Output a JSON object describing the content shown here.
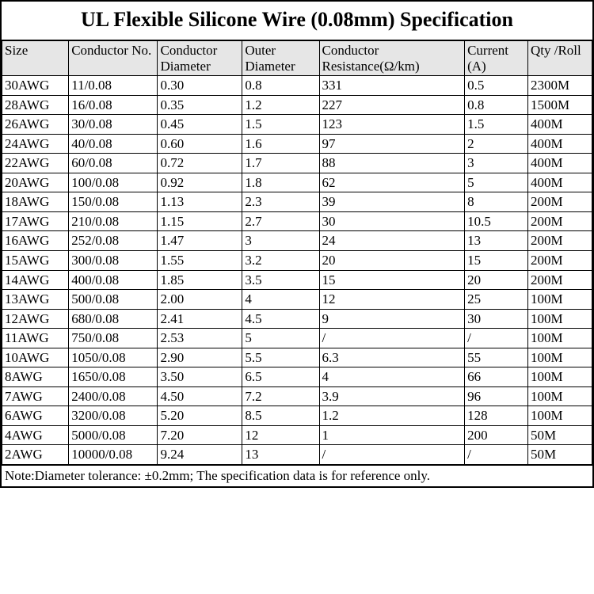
{
  "title": "UL Flexible Silicone Wire (0.08mm) Specification",
  "columns": [
    {
      "label": "Size",
      "width": 78
    },
    {
      "label": "Conductor No.",
      "width": 104
    },
    {
      "label": "Conductor Diameter",
      "width": 99
    },
    {
      "label": "Outer Diameter",
      "width": 90
    },
    {
      "label": "Conductor Resistance(Ω/km)",
      "width": 170
    },
    {
      "label": "Current (A)",
      "width": 74
    },
    {
      "label": "Qty /Roll",
      "width": 75
    }
  ],
  "rows": [
    [
      "30AWG",
      "11/0.08",
      "0.30",
      "0.8",
      "331",
      "0.5",
      "2300M"
    ],
    [
      "28AWG",
      "16/0.08",
      "0.35",
      "1.2",
      "227",
      "0.8",
      "1500M"
    ],
    [
      "26AWG",
      "30/0.08",
      "0.45",
      "1.5",
      "123",
      "1.5",
      "400M"
    ],
    [
      "24AWG",
      "40/0.08",
      "0.60",
      "1.6",
      "97",
      "2",
      "400M"
    ],
    [
      "22AWG",
      "60/0.08",
      "0.72",
      "1.7",
      "88",
      "3",
      "400M"
    ],
    [
      "20AWG",
      "100/0.08",
      "0.92",
      "1.8",
      "62",
      "5",
      "400M"
    ],
    [
      "18AWG",
      "150/0.08",
      "1.13",
      "2.3",
      "39",
      "8",
      "200M"
    ],
    [
      "17AWG",
      "210/0.08",
      "1.15",
      "2.7",
      "30",
      "10.5",
      "200M"
    ],
    [
      "16AWG",
      "252/0.08",
      "1.47",
      "3",
      "24",
      "13",
      "200M"
    ],
    [
      "15AWG",
      "300/0.08",
      "1.55",
      "3.2",
      "20",
      "15",
      "200M"
    ],
    [
      "14AWG",
      "400/0.08",
      "1.85",
      "3.5",
      "15",
      "20",
      "200M"
    ],
    [
      "13AWG",
      "500/0.08",
      "2.00",
      "4",
      "12",
      "25",
      "100M"
    ],
    [
      "12AWG",
      "680/0.08",
      "2.41",
      "4.5",
      "9",
      "30",
      "100M"
    ],
    [
      "11AWG",
      "750/0.08",
      "2.53",
      "5",
      "/",
      "/",
      "100M"
    ],
    [
      "10AWG",
      "1050/0.08",
      "2.90",
      "5.5",
      "6.3",
      "55",
      "100M"
    ],
    [
      "8AWG",
      "1650/0.08",
      "3.50",
      "6.5",
      "4",
      "66",
      "100M"
    ],
    [
      "7AWG",
      "2400/0.08",
      "4.50",
      "7.2",
      "3.9",
      "96",
      "100M"
    ],
    [
      "6AWG",
      "3200/0.08",
      "5.20",
      "8.5",
      "1.2",
      "128",
      "100M"
    ],
    [
      "4AWG",
      "5000/0.08",
      "7.20",
      "12",
      "1",
      "200",
      "50M"
    ],
    [
      "2AWG",
      "10000/0.08",
      "9.24",
      "13",
      "/",
      "/",
      "50M"
    ]
  ],
  "footnote": "Note:Diameter tolerance: ±0.2mm; The specification data is for reference only.",
  "style": {
    "header_bg": "#e6e6e6",
    "border_color": "#000000",
    "background": "#ffffff",
    "title_fontsize": 26,
    "cell_fontsize": 17,
    "font_family": "Times New Roman"
  }
}
